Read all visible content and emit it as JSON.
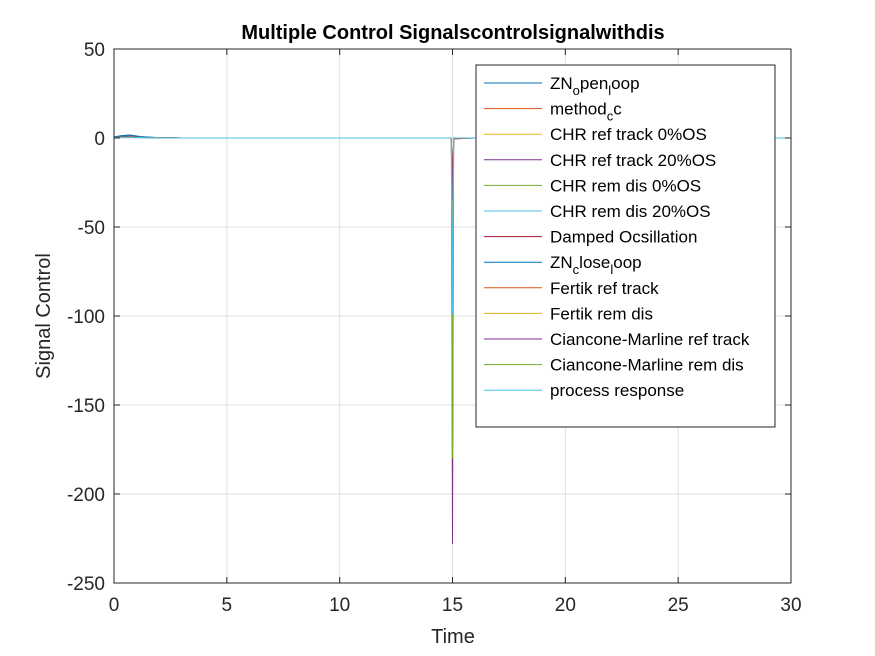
{
  "chart_data": {
    "type": "line",
    "title": "Multiple Control Signalscontrolsignalwithdis",
    "xlabel": "Time",
    "ylabel": "Signal Control",
    "xlim": [
      0,
      30
    ],
    "ylim": [
      -250,
      50
    ],
    "xticks": [
      0,
      5,
      10,
      15,
      20,
      25,
      30
    ],
    "yticks": [
      50,
      0,
      -50,
      -100,
      -150,
      -200,
      -250
    ],
    "grid": true,
    "legend_position": "top-right",
    "series": [
      {
        "name": "ZN_open_loop",
        "legend_base": "ZN",
        "legend_parts": [
          {
            "t": "o",
            "sub": true
          },
          {
            "t": "pen",
            "sub": false
          },
          {
            "t": "l",
            "sub": true
          },
          {
            "t": "oop",
            "sub": false
          }
        ],
        "color": "#0072BD",
        "x": [
          0,
          0.3,
          0.7,
          1.2,
          2,
          3,
          14.95,
          15,
          15.05,
          16,
          30
        ],
        "y": [
          0.5,
          1.2,
          1.6,
          0.8,
          0.2,
          0,
          0,
          -30,
          -0.5,
          0,
          0
        ]
      },
      {
        "name": "method_c",
        "legend_base": "method",
        "legend_parts": [
          {
            "t": "c",
            "sub": true
          },
          {
            "t": "c",
            "sub": false
          }
        ],
        "color": "#D95319",
        "x": [
          0,
          0.3,
          0.7,
          1.2,
          2,
          3,
          14.95,
          15,
          15.05,
          16,
          30
        ],
        "y": [
          0.4,
          1.0,
          1.3,
          0.6,
          0.1,
          0,
          0,
          -40,
          -0.5,
          0,
          0
        ]
      },
      {
        "name": "CHR ref track 0%OS",
        "color": "#EDB120",
        "x": [
          0,
          0.5,
          1.5,
          3,
          14.95,
          15,
          15.05,
          30
        ],
        "y": [
          0.3,
          0.6,
          0.3,
          0,
          0,
          -60,
          0,
          0
        ]
      },
      {
        "name": "CHR ref track 20%OS",
        "color": "#7E2F8E",
        "x": [
          0,
          0.5,
          1.5,
          3,
          14.95,
          15,
          15.05,
          30
        ],
        "y": [
          0.3,
          0.8,
          0.3,
          0,
          0,
          -228,
          0,
          0
        ]
      },
      {
        "name": "CHR rem dis 0%OS",
        "color": "#77AC30",
        "x": [
          0,
          0.5,
          1.5,
          3,
          14.95,
          15,
          15.05,
          30
        ],
        "y": [
          0.2,
          0.5,
          0.2,
          0,
          0,
          -180,
          0,
          0
        ]
      },
      {
        "name": "CHR rem dis 20%OS",
        "color": "#4DBEEE",
        "x": [
          0,
          0.5,
          1.5,
          3,
          14.95,
          15,
          15.05,
          30
        ],
        "y": [
          0.2,
          0.6,
          0.2,
          0,
          0,
          -90,
          0,
          0
        ]
      },
      {
        "name": "Damped Ocsillation",
        "color": "#A2142F",
        "x": [
          0,
          0.5,
          1.5,
          3,
          14.95,
          15,
          15.05,
          30
        ],
        "y": [
          0.3,
          0.7,
          0.2,
          0,
          0,
          -50,
          0,
          0
        ]
      },
      {
        "name": "ZN_close_loop",
        "legend_base": "ZN",
        "legend_parts": [
          {
            "t": "c",
            "sub": true
          },
          {
            "t": "lose",
            "sub": false
          },
          {
            "t": "l",
            "sub": true
          },
          {
            "t": "oop",
            "sub": false
          }
        ],
        "color": "#0072BD",
        "x": [
          0,
          0.3,
          0.7,
          1.2,
          2,
          3,
          14.95,
          15,
          15.05,
          30
        ],
        "y": [
          0.6,
          1.3,
          1.7,
          0.7,
          0.1,
          0,
          0,
          -100,
          0,
          0
        ]
      },
      {
        "name": "Fertik ref track",
        "color": "#D95319",
        "x": [
          0,
          0.5,
          1.5,
          3,
          14.95,
          15,
          15.05,
          30
        ],
        "y": [
          0.2,
          0.5,
          0.2,
          0,
          0,
          -45,
          0,
          0
        ]
      },
      {
        "name": "Fertik rem dis",
        "color": "#EDB120",
        "x": [
          0,
          0.5,
          1.5,
          3,
          14.95,
          15,
          15.05,
          30
        ],
        "y": [
          0.2,
          0.5,
          0.2,
          0,
          0,
          -70,
          0,
          0
        ]
      },
      {
        "name": "Ciancone-Marline ref track",
        "color": "#7E2F8E",
        "x": [
          0,
          0.5,
          1.5,
          3,
          14.95,
          15,
          15.05,
          30
        ],
        "y": [
          0.2,
          0.6,
          0.2,
          0,
          0,
          -35,
          0,
          0
        ]
      },
      {
        "name": "Ciancone-Marline rem dis",
        "color": "#77AC30",
        "x": [
          0,
          0.5,
          1.5,
          3,
          14.95,
          15,
          15.05,
          30
        ],
        "y": [
          0.2,
          0.5,
          0.2,
          0,
          0,
          -100,
          0,
          0
        ]
      },
      {
        "name": "process response",
        "color": "#4DBEEE",
        "x": [
          0,
          0.5,
          1.5,
          3,
          14.95,
          15,
          15.05,
          30
        ],
        "y": [
          0.1,
          0.4,
          0.1,
          0,
          0,
          -99,
          0,
          0
        ]
      }
    ]
  }
}
